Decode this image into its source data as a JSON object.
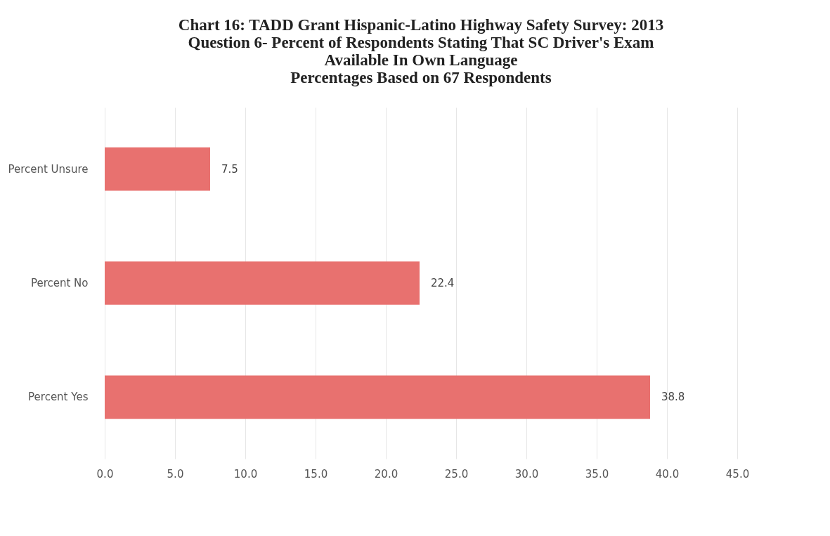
{
  "chart_data": {
    "type": "bar",
    "orientation": "horizontal",
    "title": [
      "Chart 16: TADD Grant Hispanic-Latino Highway Safety Survey: 2013",
      "Question 6- Percent of Respondents Stating That SC Driver's Exam",
      "Available In Own Language",
      "Percentages Based on 67 Respondents"
    ],
    "categories": [
      "Percent Unsure",
      "Percent No",
      "Percent Yes"
    ],
    "values": [
      7.5,
      22.4,
      38.8
    ],
    "color": "#e8716f",
    "xlim": [
      0,
      45
    ],
    "xticks": [
      {
        "value": 0,
        "label": "0.0"
      },
      {
        "value": 5,
        "label": "5.0"
      },
      {
        "value": 10,
        "label": "10.0"
      },
      {
        "value": 15,
        "label": "15.0"
      },
      {
        "value": 20,
        "label": "20.0"
      },
      {
        "value": 25,
        "label": "25.0"
      },
      {
        "value": 30,
        "label": "30.0"
      },
      {
        "value": 35,
        "label": "35.0"
      },
      {
        "value": 40,
        "label": "40.0"
      },
      {
        "value": 45,
        "label": "45.0"
      }
    ],
    "data_labels": true,
    "grid": "x"
  }
}
